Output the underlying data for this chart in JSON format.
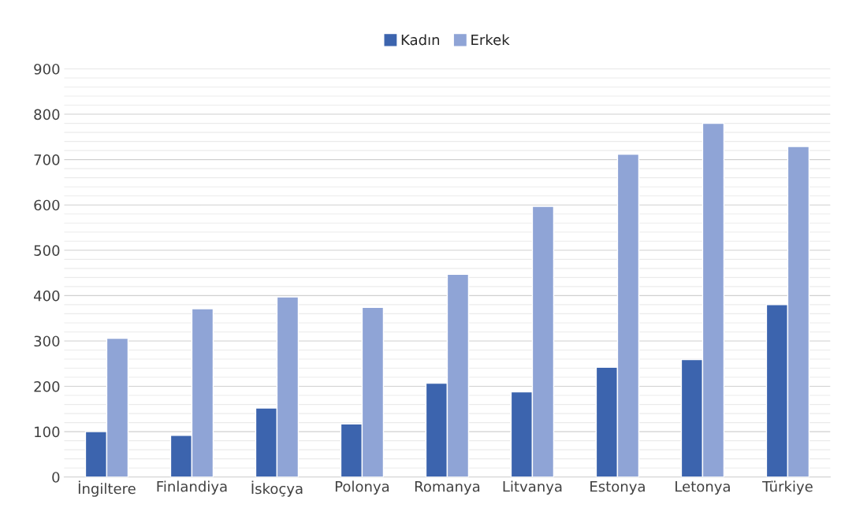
{
  "chart_data": {
    "type": "bar",
    "categories": [
      "İngiltere",
      "Finlandiya",
      "İskoçya",
      "Polonya",
      "Romanya",
      "Litvanya",
      "Estonya",
      "Letonya",
      "Türkiye"
    ],
    "series": [
      {
        "name": "Kadın",
        "color": "#3c64ae",
        "values": [
          100,
          92,
          152,
          117,
          207,
          188,
          242,
          259,
          380
        ]
      },
      {
        "name": "Erkek",
        "color": "#8fa4d6",
        "values": [
          306,
          371,
          397,
          374,
          447,
          597,
          712,
          780,
          729
        ]
      }
    ],
    "ylim": [
      0,
      900
    ],
    "yticks": [
      0,
      {
        "value": 20,
        "label": null
      },
      {
        "value": 40,
        "label": null
      },
      {
        "value": 60,
        "label": null
      },
      {
        "value": 80,
        "label": null
      },
      100,
      {
        "value": 120,
        "label": null
      },
      {
        "value": 140,
        "label": null
      },
      {
        "value": 160,
        "label": null
      },
      {
        "value": 180,
        "label": null
      },
      200,
      {
        "value": 220,
        "label": null
      },
      {
        "value": 240,
        "label": null
      },
      {
        "value": 260,
        "label": null
      },
      {
        "value": 280,
        "label": null
      },
      300,
      {
        "value": 320,
        "label": null
      },
      {
        "value": 340,
        "label": null
      },
      {
        "value": 360,
        "label": null
      },
      {
        "value": 380,
        "label": null
      },
      400,
      {
        "value": 420,
        "label": null
      },
      {
        "value": 440,
        "label": null
      },
      {
        "value": 460,
        "label": null
      },
      {
        "value": 480,
        "label": null
      },
      500,
      {
        "value": 520,
        "label": null
      },
      {
        "value": 540,
        "label": null
      },
      {
        "value": 560,
        "label": null
      },
      {
        "value": 580,
        "label": null
      },
      600,
      {
        "value": 620,
        "label": null
      },
      {
        "value": 640,
        "label": null
      },
      {
        "value": 660,
        "label": null
      },
      {
        "value": 680,
        "label": null
      },
      700,
      {
        "value": 720,
        "label": null
      },
      {
        "value": 740,
        "label": null
      },
      {
        "value": 760,
        "label": null
      },
      {
        "value": 780,
        "label": null
      },
      800,
      {
        "value": 820,
        "label": null
      },
      {
        "value": 840,
        "label": null
      },
      {
        "value": 860,
        "label": null
      },
      {
        "value": 880,
        "label": null
      },
      900
    ],
    "grid": "y",
    "legend": "top"
  }
}
